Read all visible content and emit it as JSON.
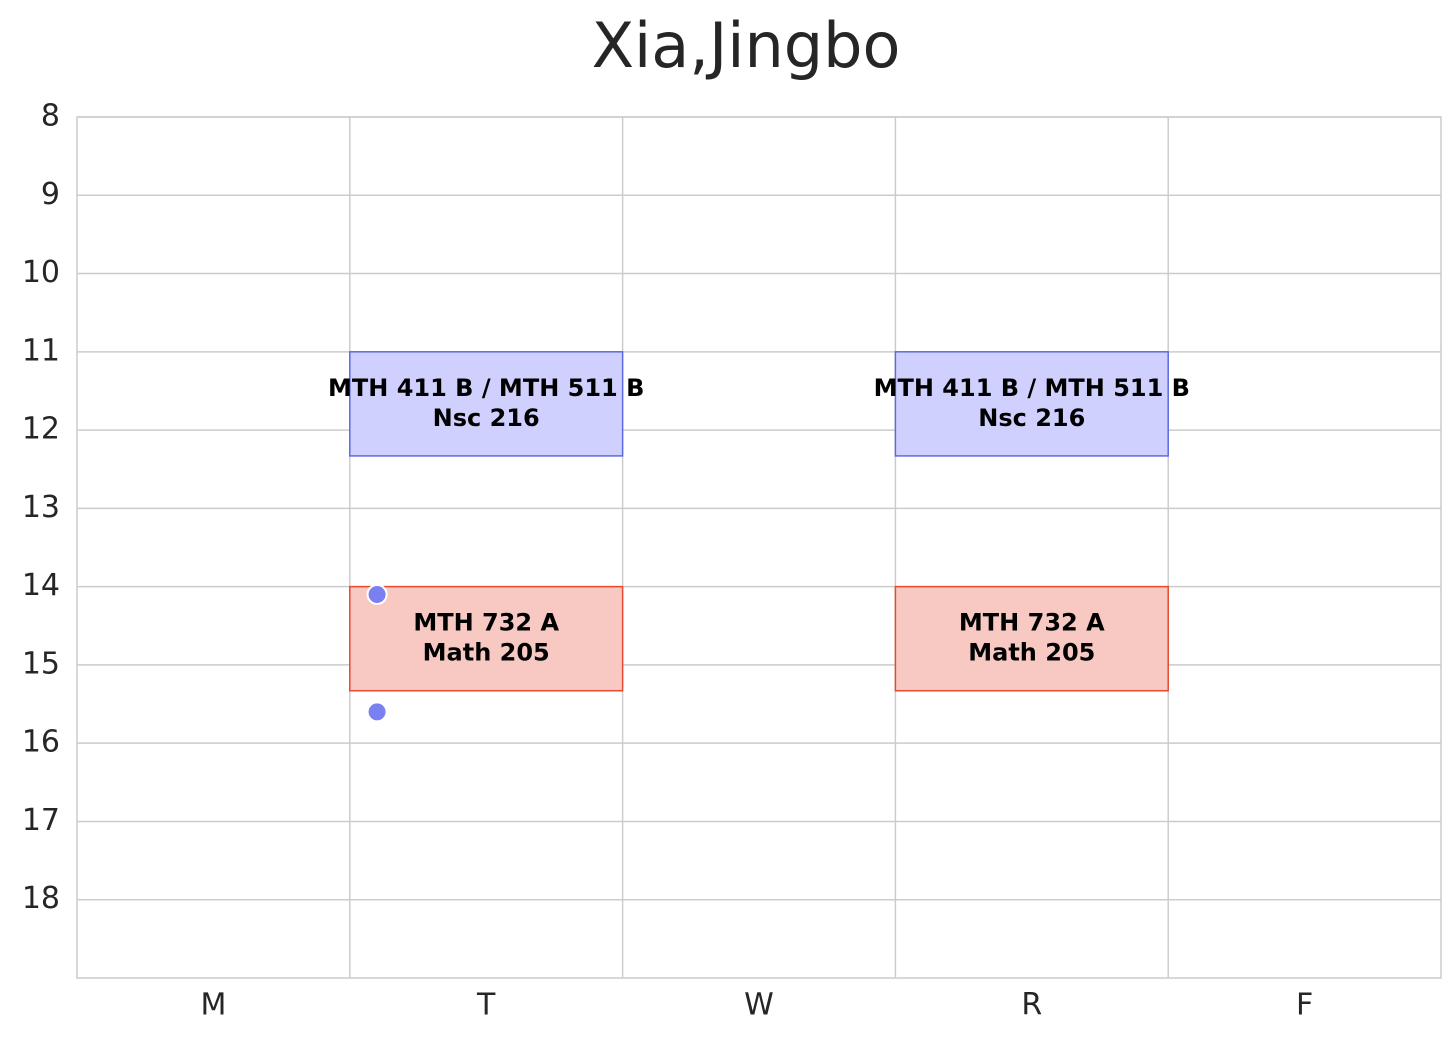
{
  "chart_data": {
    "type": "schedule",
    "title": "Xia,Jingbo",
    "categories": [
      "M",
      "T",
      "W",
      "R",
      "F"
    ],
    "ylim": [
      8,
      19
    ],
    "y_inverted": true,
    "yticks": [
      8,
      9,
      10,
      11,
      12,
      13,
      14,
      15,
      16,
      17,
      18
    ],
    "grid": true,
    "blocks": [
      {
        "category": "T",
        "label": [
          "MTH 411 B / MTH 511 B",
          "Nsc 216"
        ],
        "start": 11,
        "end": 12.33,
        "color": "#d0d0ff",
        "edge_color": "#5d6be0"
      },
      {
        "category": "R",
        "label": [
          "MTH 411 B / MTH 511 B",
          "Nsc 216"
        ],
        "start": 11,
        "end": 12.33,
        "color": "#d0d0ff",
        "edge_color": "#5d6be0"
      },
      {
        "category": "T",
        "label": [
          "MTH 732 A",
          "Math 205"
        ],
        "start": 14,
        "end": 15.33,
        "color": "#f8c8c2",
        "edge_color": "#e84a30"
      },
      {
        "category": "R",
        "label": [
          "MTH 732 A",
          "Math 205"
        ],
        "start": 14,
        "end": 15.33,
        "color": "#f8c8c2",
        "edge_color": "#e84a30"
      }
    ],
    "points": {
      "xlim": [
        -0.5,
        4.5
      ],
      "x": [
        0.6,
        0.6
      ],
      "values": [
        14.1,
        15.6
      ],
      "color": "#7b80f0"
    }
  }
}
